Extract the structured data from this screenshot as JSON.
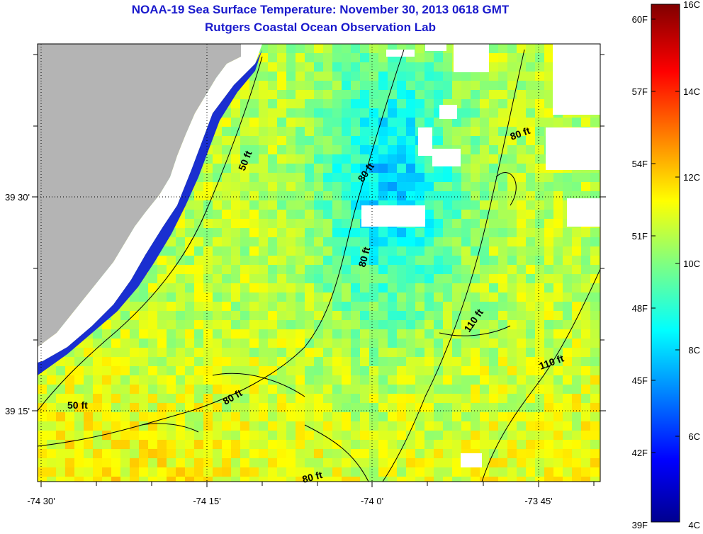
{
  "title": "NOAA-19 Sea Surface Temperature:  November 30, 2013 0618 GMT",
  "subtitle": "Rutgers Coastal Ocean Observation Lab",
  "map": {
    "x_ticks": [
      "-74 30'",
      "-74 15'",
      "-74 0'",
      "-73 45'"
    ],
    "y_ticks": [
      "39 30'",
      "39 15'"
    ],
    "contour_labels": [
      "50 ft",
      "50 ft",
      "80 ft",
      "80 ft",
      "80 ft",
      "80 ft",
      "80 ft",
      "110 ft",
      "110 ft"
    ]
  },
  "colorbar": {
    "fahrenheit_labels": [
      "60F",
      "57F",
      "54F",
      "51F",
      "48F",
      "45F",
      "42F",
      "39F"
    ],
    "celsius_labels": [
      "16C",
      "14C",
      "12C",
      "10C",
      "8C",
      "6C",
      "4C"
    ],
    "range_c": [
      4,
      16
    ]
  },
  "colors": {
    "title": "#1a1acc",
    "land": "#b4b4b4",
    "nodata": "#ffffff"
  }
}
